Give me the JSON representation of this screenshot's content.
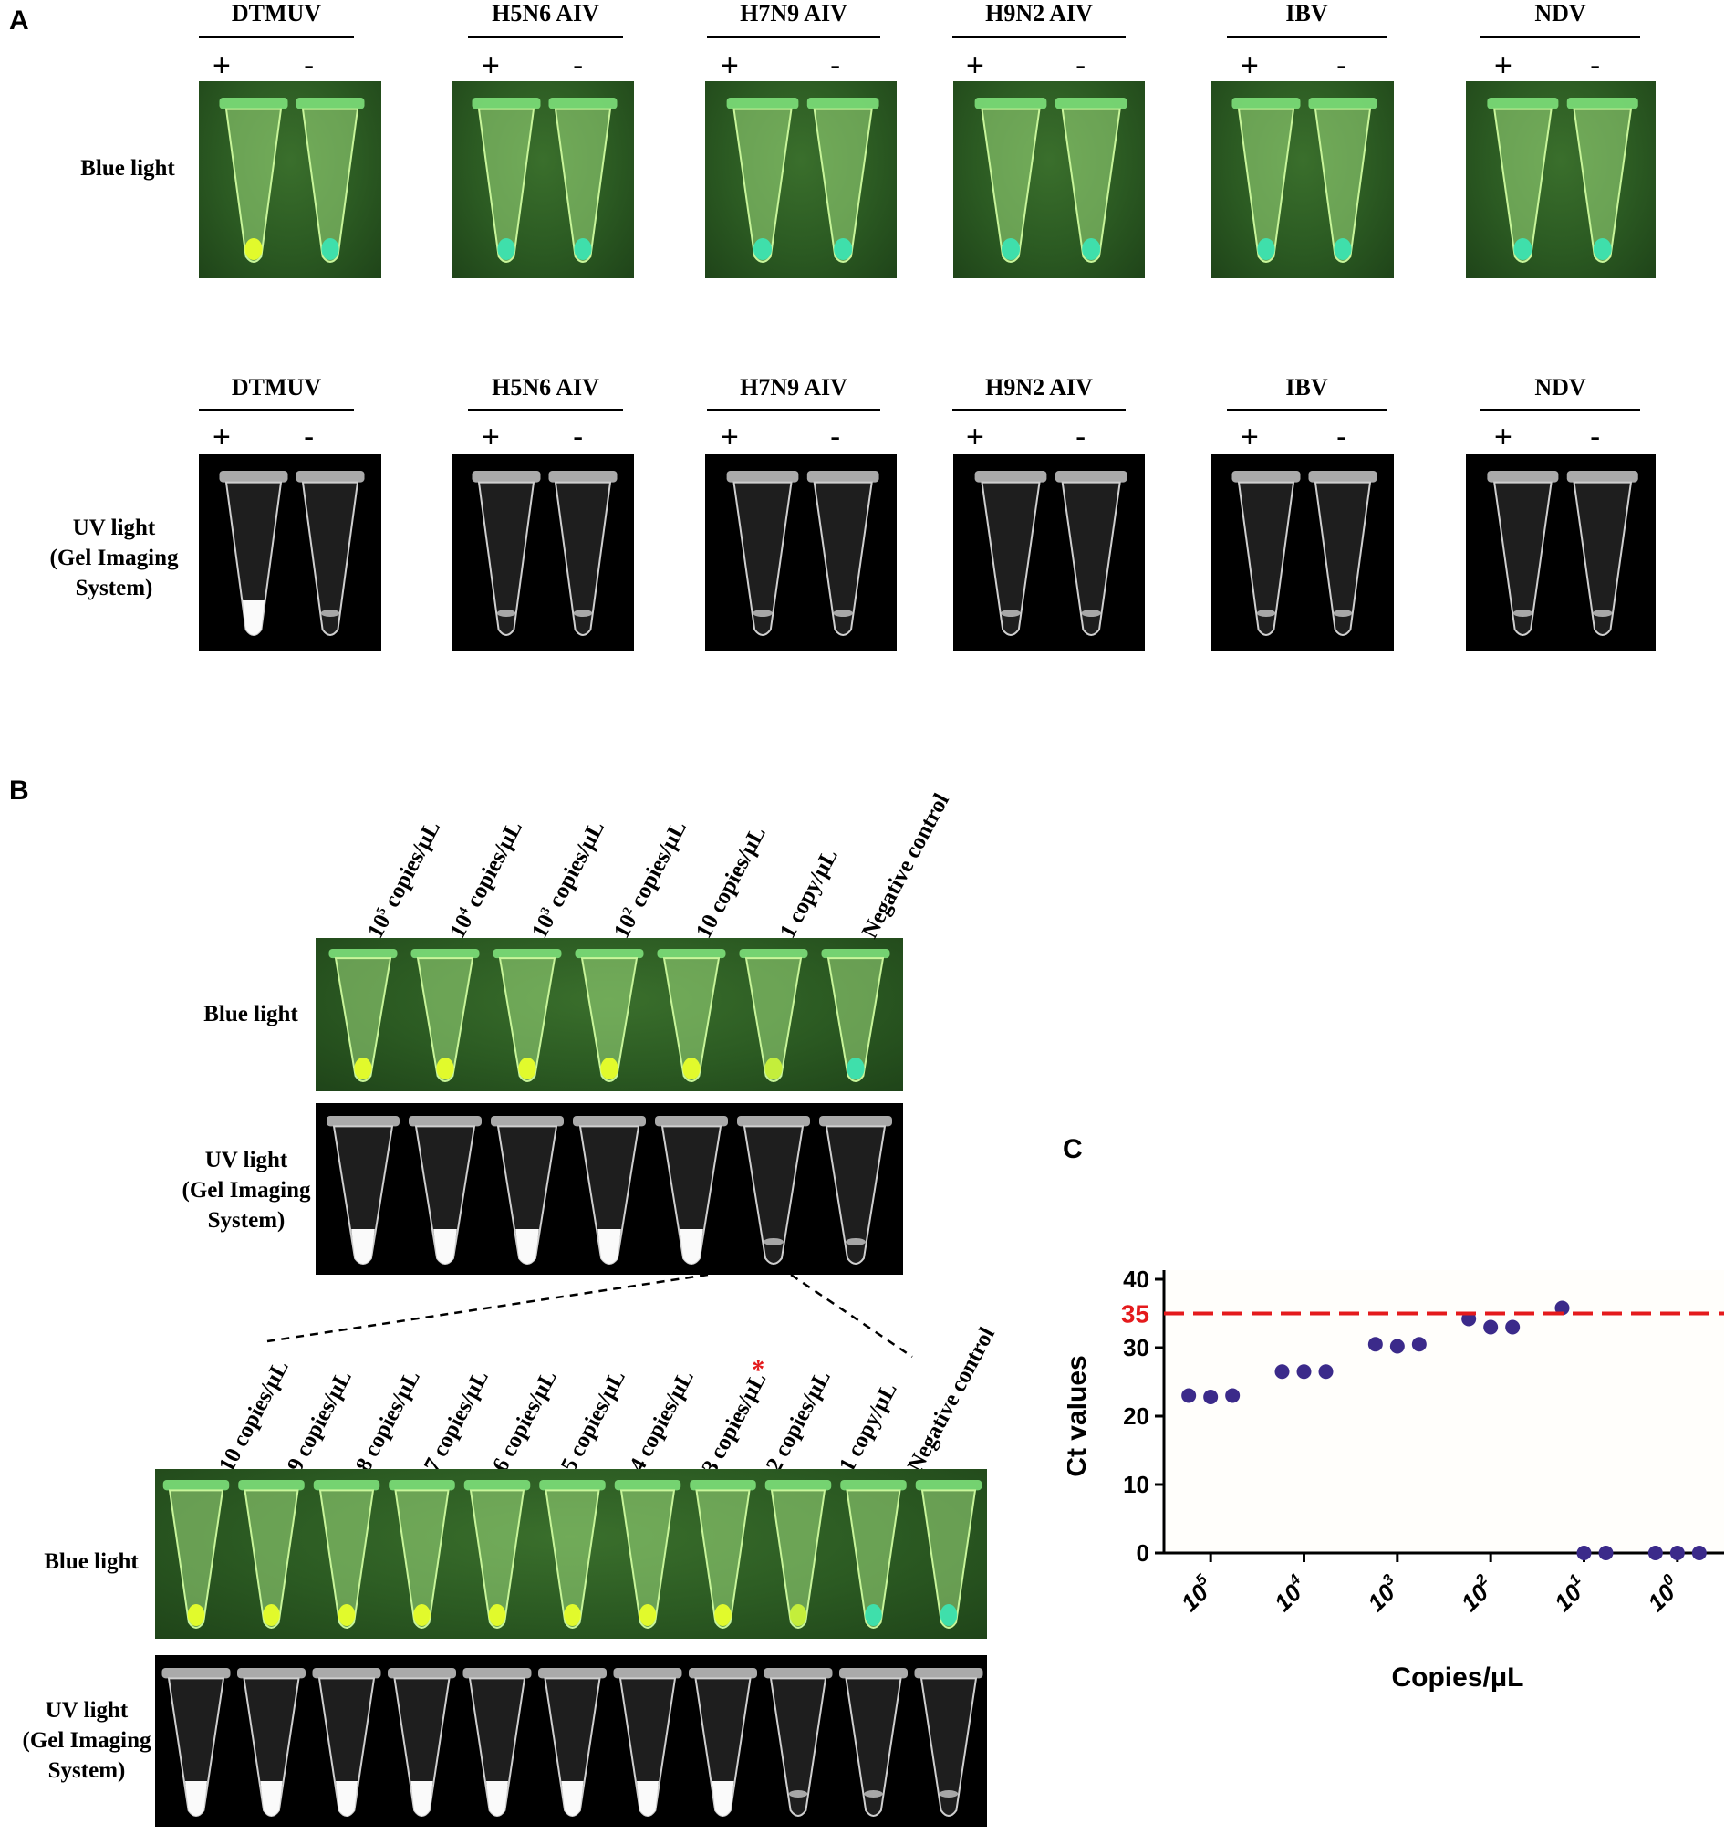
{
  "panel_a": {
    "letter": "A",
    "row_labels": {
      "blue": "Blue light",
      "uv_line1": "UV light",
      "uv_line2": "(Gel Imaging",
      "uv_line3": "System)"
    },
    "headers": [
      "DTMUV",
      "H5N6 AIV",
      "H7N9 AIV",
      "H9N2 AIV",
      "IBV",
      "NDV"
    ],
    "plus": "+",
    "minus": "-"
  },
  "panel_b": {
    "letter": "B",
    "top_lanes": [
      {
        "base": "10",
        "exp": "5",
        "rest": " copies/μL"
      },
      {
        "base": "10",
        "exp": "4",
        "rest": " copies/μL"
      },
      {
        "base": "10",
        "exp": "3",
        "rest": " copies/μL"
      },
      {
        "base": "10",
        "exp": "2",
        "rest": " copies/μL"
      },
      {
        "base": "10 copies/μL",
        "exp": "",
        "rest": ""
      },
      {
        "base": "1 copy/μL",
        "exp": "",
        "rest": ""
      },
      {
        "base": "Negative control",
        "exp": "",
        "rest": ""
      }
    ],
    "bottom_lanes": [
      "10 copies/μL",
      "9 copies/μL",
      "8 copies/μL",
      "7 copies/μL",
      "6 copies/μL",
      "5 copies/μL",
      "4 copies/μL",
      "3 copies/μL",
      "2 copies/μL",
      "1 copy/μL",
      "Negative control"
    ],
    "asterisk": "*",
    "row_labels": {
      "blue": "Blue light",
      "uv_line1": "UV light",
      "uv_line2": "(Gel Imaging",
      "uv_line3": "System)"
    }
  },
  "panel_c": {
    "letter": "C",
    "threshold_label": "35",
    "colors": {
      "points": "#3b2a8a",
      "threshold": "#e41a1c",
      "plot_bg": "#fffefb"
    }
  },
  "chart_data": {
    "type": "scatter",
    "xlabel": "Copies/μL",
    "ylabel": "Ct values",
    "x_ticks": [
      {
        "base": "10",
        "exp": "5"
      },
      {
        "base": "10",
        "exp": "4"
      },
      {
        "base": "10",
        "exp": "3"
      },
      {
        "base": "10",
        "exp": "2"
      },
      {
        "base": "10",
        "exp": "1"
      },
      {
        "base": "10",
        "exp": "0"
      }
    ],
    "y_ticks": [
      0,
      10,
      20,
      30,
      40
    ],
    "ylim": [
      0,
      40
    ],
    "threshold": 35,
    "groups": [
      {
        "category": "10^5",
        "values": [
          23.0,
          22.8,
          23.0
        ]
      },
      {
        "category": "10^4",
        "values": [
          26.5,
          26.5,
          26.5
        ]
      },
      {
        "category": "10^3",
        "values": [
          30.5,
          30.2,
          30.5
        ]
      },
      {
        "category": "10^2",
        "values": [
          34.2,
          33.0,
          33.0
        ]
      },
      {
        "category": "10^1",
        "values": [
          35.8,
          0,
          0
        ]
      },
      {
        "category": "10^0",
        "values": [
          0,
          0,
          0
        ]
      }
    ]
  }
}
